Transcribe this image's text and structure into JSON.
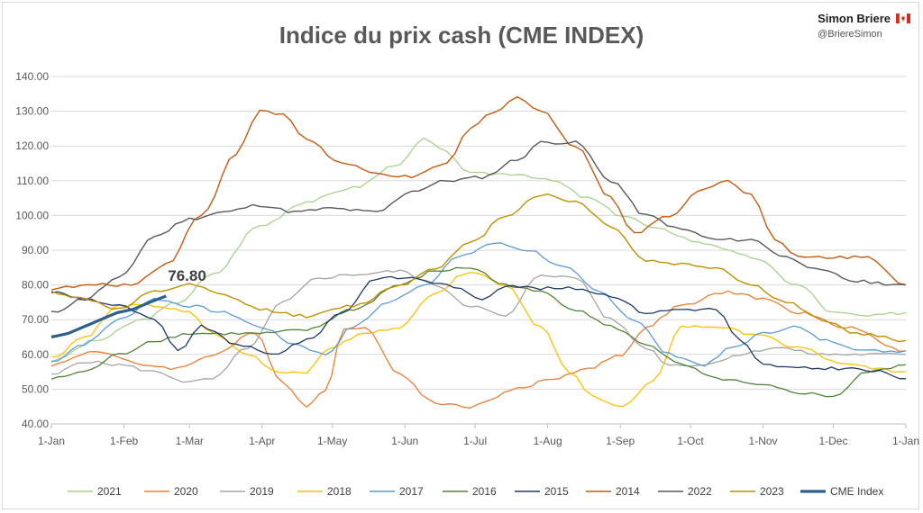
{
  "header": {
    "brand_name": "Simon Briere",
    "brand_handle": "@BriereSimon",
    "flag_icon": "canada-flag-icon"
  },
  "chart_data": {
    "type": "line",
    "title": "Indice du prix cash (CME INDEX)",
    "xlabel": "",
    "ylabel": "",
    "ylim": [
      40,
      140
    ],
    "yticks": [
      "40.00",
      "50.00",
      "60.00",
      "70.00",
      "80.00",
      "90.00",
      "100.00",
      "110.00",
      "120.00",
      "130.00",
      "140.00"
    ],
    "xlim": [
      1,
      366
    ],
    "xticks": [
      {
        "label": "1-Jan",
        "day": 1
      },
      {
        "label": "1-Feb",
        "day": 32
      },
      {
        "label": "1-Mar",
        "day": 60
      },
      {
        "label": "1-Apr",
        "day": 91
      },
      {
        "label": "1-May",
        "day": 121
      },
      {
        "label": "1-Jun",
        "day": 152
      },
      {
        "label": "1-Jul",
        "day": 182
      },
      {
        "label": "1-Aug",
        "day": 213
      },
      {
        "label": "1-Sep",
        "day": 244
      },
      {
        "label": "1-Oct",
        "day": 274
      },
      {
        "label": "1-Nov",
        "day": 305
      },
      {
        "label": "1-Dec",
        "day": 335
      },
      {
        "label": "1-Jan",
        "day": 366
      }
    ],
    "grid": true,
    "legend_position": "bottom",
    "annotation": {
      "text": "76.80",
      "day": 50,
      "value": 76.8
    },
    "series": [
      {
        "name": "2021",
        "color": "#a9d18e",
        "width": 1.3,
        "points": [
          [
            1,
            58
          ],
          [
            20,
            64
          ],
          [
            40,
            70
          ],
          [
            55,
            75
          ],
          [
            70,
            83
          ],
          [
            90,
            97
          ],
          [
            110,
            104
          ],
          [
            130,
            108
          ],
          [
            150,
            115
          ],
          [
            160,
            122
          ],
          [
            170,
            118
          ],
          [
            180,
            112
          ],
          [
            200,
            112
          ],
          [
            215,
            110
          ],
          [
            230,
            105
          ],
          [
            245,
            100
          ],
          [
            260,
            96
          ],
          [
            280,
            92
          ],
          [
            300,
            88
          ],
          [
            320,
            80
          ],
          [
            335,
            72
          ],
          [
            350,
            71
          ],
          [
            366,
            72
          ]
        ]
      },
      {
        "name": "2020",
        "color": "#ed7d31",
        "width": 1.3,
        "points": [
          [
            1,
            57
          ],
          [
            20,
            61
          ],
          [
            40,
            57
          ],
          [
            55,
            56
          ],
          [
            70,
            60
          ],
          [
            88,
            66
          ],
          [
            100,
            52
          ],
          [
            110,
            45
          ],
          [
            118,
            50
          ],
          [
            126,
            67
          ],
          [
            135,
            68
          ],
          [
            150,
            54
          ],
          [
            165,
            46
          ],
          [
            180,
            45
          ],
          [
            200,
            50
          ],
          [
            215,
            53
          ],
          [
            230,
            56
          ],
          [
            245,
            60
          ],
          [
            255,
            68
          ],
          [
            270,
            74
          ],
          [
            290,
            78
          ],
          [
            305,
            76
          ],
          [
            320,
            72
          ],
          [
            340,
            68
          ],
          [
            366,
            61
          ]
        ]
      },
      {
        "name": "2019",
        "color": "#a5a5a5",
        "width": 1.3,
        "points": [
          [
            1,
            54
          ],
          [
            15,
            58
          ],
          [
            30,
            57
          ],
          [
            45,
            55
          ],
          [
            60,
            52
          ],
          [
            70,
            53
          ],
          [
            85,
            62
          ],
          [
            100,
            75
          ],
          [
            115,
            82
          ],
          [
            130,
            83
          ],
          [
            150,
            84
          ],
          [
            165,
            80
          ],
          [
            180,
            74
          ],
          [
            195,
            71
          ],
          [
            210,
            83
          ],
          [
            225,
            82
          ],
          [
            240,
            70
          ],
          [
            255,
            62
          ],
          [
            265,
            57
          ],
          [
            280,
            57
          ],
          [
            295,
            60
          ],
          [
            310,
            62
          ],
          [
            330,
            60
          ],
          [
            350,
            60
          ],
          [
            366,
            60
          ]
        ]
      },
      {
        "name": "2018",
        "color": "#ffc000",
        "width": 1.3,
        "points": [
          [
            1,
            59
          ],
          [
            15,
            65
          ],
          [
            30,
            74
          ],
          [
            45,
            74
          ],
          [
            60,
            72
          ],
          [
            70,
            66
          ],
          [
            85,
            60
          ],
          [
            98,
            55
          ],
          [
            110,
            55
          ],
          [
            120,
            62
          ],
          [
            135,
            66
          ],
          [
            150,
            68
          ],
          [
            165,
            78
          ],
          [
            180,
            84
          ],
          [
            195,
            80
          ],
          [
            210,
            68
          ],
          [
            222,
            55
          ],
          [
            232,
            48
          ],
          [
            245,
            45
          ],
          [
            258,
            52
          ],
          [
            270,
            68
          ],
          [
            285,
            68
          ],
          [
            300,
            66
          ],
          [
            320,
            62
          ],
          [
            340,
            57
          ],
          [
            366,
            55
          ]
        ]
      },
      {
        "name": "2017",
        "color": "#5b9bd5",
        "width": 1.3,
        "points": [
          [
            1,
            58
          ],
          [
            15,
            63
          ],
          [
            30,
            70
          ],
          [
            45,
            76
          ],
          [
            60,
            74
          ],
          [
            75,
            72
          ],
          [
            90,
            68
          ],
          [
            105,
            63
          ],
          [
            118,
            60
          ],
          [
            130,
            68
          ],
          [
            145,
            75
          ],
          [
            160,
            80
          ],
          [
            175,
            88
          ],
          [
            190,
            92
          ],
          [
            205,
            90
          ],
          [
            220,
            85
          ],
          [
            235,
            78
          ],
          [
            250,
            70
          ],
          [
            265,
            60
          ],
          [
            280,
            57
          ],
          [
            292,
            62
          ],
          [
            305,
            66
          ],
          [
            318,
            68
          ],
          [
            332,
            64
          ],
          [
            350,
            61
          ],
          [
            366,
            61
          ]
        ]
      },
      {
        "name": "2016",
        "color": "#548235",
        "width": 1.3,
        "points": [
          [
            1,
            53
          ],
          [
            15,
            55
          ],
          [
            30,
            60
          ],
          [
            45,
            64
          ],
          [
            60,
            66
          ],
          [
            75,
            66
          ],
          [
            90,
            66
          ],
          [
            110,
            67
          ],
          [
            130,
            73
          ],
          [
            150,
            80
          ],
          [
            165,
            84
          ],
          [
            180,
            85
          ],
          [
            195,
            80
          ],
          [
            210,
            78
          ],
          [
            225,
            73
          ],
          [
            240,
            68
          ],
          [
            255,
            63
          ],
          [
            270,
            57
          ],
          [
            285,
            53
          ],
          [
            305,
            51
          ],
          [
            320,
            49
          ],
          [
            335,
            48
          ],
          [
            350,
            55
          ],
          [
            366,
            57
          ]
        ]
      },
      {
        "name": "2015",
        "color": "#1f3864",
        "width": 1.3,
        "points": [
          [
            1,
            78
          ],
          [
            15,
            76
          ],
          [
            30,
            74
          ],
          [
            45,
            70
          ],
          [
            55,
            61
          ],
          [
            65,
            68
          ],
          [
            80,
            63
          ],
          [
            95,
            60
          ],
          [
            110,
            64
          ],
          [
            125,
            72
          ],
          [
            140,
            82
          ],
          [
            155,
            82
          ],
          [
            170,
            80
          ],
          [
            185,
            76
          ],
          [
            195,
            80
          ],
          [
            210,
            79
          ],
          [
            225,
            79
          ],
          [
            240,
            77
          ],
          [
            255,
            72
          ],
          [
            270,
            73
          ],
          [
            285,
            73
          ],
          [
            295,
            64
          ],
          [
            305,
            57
          ],
          [
            320,
            56
          ],
          [
            340,
            56
          ],
          [
            355,
            55
          ],
          [
            366,
            53
          ]
        ]
      },
      {
        "name": "2014",
        "color": "#c55a11",
        "width": 1.4,
        "points": [
          [
            1,
            79
          ],
          [
            20,
            80
          ],
          [
            35,
            80
          ],
          [
            50,
            86
          ],
          [
            65,
            100
          ],
          [
            80,
            118
          ],
          [
            90,
            130
          ],
          [
            100,
            129
          ],
          [
            110,
            122
          ],
          [
            125,
            115
          ],
          [
            140,
            112
          ],
          [
            155,
            111
          ],
          [
            170,
            115
          ],
          [
            180,
            125
          ],
          [
            190,
            130
          ],
          [
            200,
            134
          ],
          [
            210,
            130
          ],
          [
            225,
            120
          ],
          [
            240,
            105
          ],
          [
            250,
            95
          ],
          [
            265,
            100
          ],
          [
            280,
            108
          ],
          [
            290,
            110
          ],
          [
            300,
            106
          ],
          [
            310,
            93
          ],
          [
            320,
            88
          ],
          [
            335,
            88
          ],
          [
            350,
            88
          ],
          [
            366,
            80
          ]
        ]
      },
      {
        "name": "2022",
        "color": "#595959",
        "width": 1.4,
        "points": [
          [
            1,
            72
          ],
          [
            15,
            76
          ],
          [
            30,
            82
          ],
          [
            45,
            94
          ],
          [
            60,
            99
          ],
          [
            75,
            101
          ],
          [
            90,
            103
          ],
          [
            105,
            101
          ],
          [
            120,
            102
          ],
          [
            140,
            101
          ],
          [
            155,
            107
          ],
          [
            170,
            110
          ],
          [
            185,
            111
          ],
          [
            200,
            116
          ],
          [
            210,
            121
          ],
          [
            225,
            121
          ],
          [
            240,
            110
          ],
          [
            255,
            100
          ],
          [
            270,
            96
          ],
          [
            285,
            93
          ],
          [
            300,
            93
          ],
          [
            315,
            88
          ],
          [
            330,
            84
          ],
          [
            345,
            81
          ],
          [
            366,
            80
          ]
        ]
      },
      {
        "name": "2023",
        "color": "#bf9000",
        "width": 1.4,
        "points": [
          [
            1,
            78
          ],
          [
            15,
            76
          ],
          [
            30,
            73
          ],
          [
            45,
            78
          ],
          [
            60,
            80
          ],
          [
            75,
            77
          ],
          [
            90,
            73
          ],
          [
            110,
            71
          ],
          [
            130,
            74
          ],
          [
            150,
            80
          ],
          [
            165,
            85
          ],
          [
            180,
            92
          ],
          [
            195,
            100
          ],
          [
            210,
            106
          ],
          [
            225,
            104
          ],
          [
            240,
            97
          ],
          [
            255,
            87
          ],
          [
            270,
            86
          ],
          [
            285,
            85
          ],
          [
            300,
            80
          ],
          [
            315,
            75
          ],
          [
            330,
            70
          ],
          [
            345,
            66
          ],
          [
            366,
            64
          ]
        ]
      },
      {
        "name": "CME Index",
        "color": "#2e5f8e",
        "width": 3.2,
        "points": [
          [
            1,
            65
          ],
          [
            8,
            66
          ],
          [
            15,
            68
          ],
          [
            22,
            70
          ],
          [
            29,
            72
          ],
          [
            36,
            73
          ],
          [
            43,
            75
          ],
          [
            50,
            76.8
          ]
        ]
      }
    ]
  }
}
